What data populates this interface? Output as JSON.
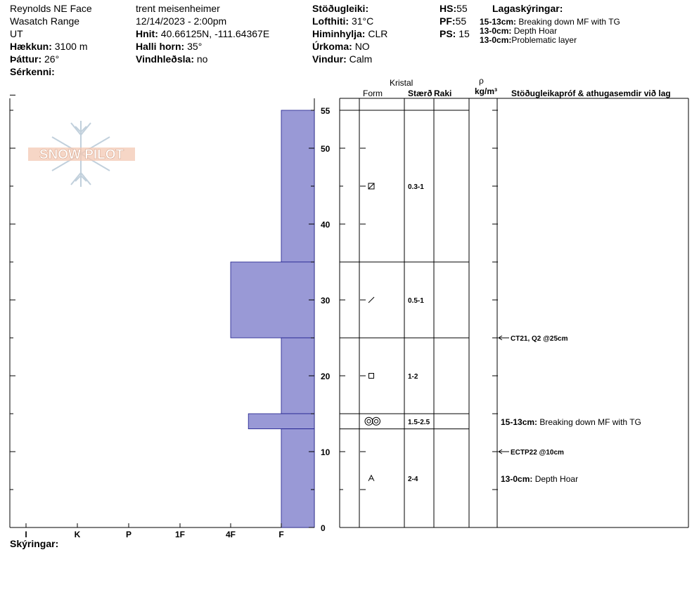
{
  "header": {
    "location": "Reynolds NE Face",
    "range": "Wasatch Range",
    "state": "UT",
    "elevation_label": "Hækkun:",
    "elevation": "3100 m",
    "aspect_label": "Þáttur:",
    "aspect": "26°",
    "features_label": "Sérkenni:",
    "features": "",
    "observer": "trent meisenheimer",
    "datetime": "12/14/2023 - 2:00pm",
    "coords_label": "Hnit:",
    "coords": "40.66125N, -111.64367E",
    "slope_label": "Halli horn:",
    "slope": "35°",
    "wind_loading_label": "Vindhleðsla:",
    "wind_loading": "no",
    "stability_label": "Stöðugleiki:",
    "stability": "",
    "air_temp_label": "Lofthiti:",
    "air_temp": "31°C",
    "sky_label": "Himinhylja:",
    "sky": "CLR",
    "precip_label": "Úrkoma:",
    "precip": "NO",
    "wind_label": "Vindur:",
    "wind": "Calm",
    "hs_label": "HS:",
    "hs": "55",
    "pf_label": "PF:",
    "pf": "55",
    "ps_label": "PS:",
    "ps": "15",
    "layer_notes_title": "Lagaskýringar:",
    "layer_notes": [
      {
        "range": "15-13cm:",
        "text": "Breaking down MF with TG"
      },
      {
        "range": "13-0cm:",
        "text": "Depth Hoar"
      },
      {
        "range": "13-0cm:",
        "text": "Problematic layer"
      }
    ]
  },
  "logo": {
    "text": "SNOW PILOT"
  },
  "columns": {
    "crystal": "Kristal",
    "form": "Form",
    "size": "Stærð",
    "moisture": "Raki",
    "density_symbol": "ρ",
    "density_unit": "kg/m³",
    "tests": "Stöðugleikapróf & athugasemdir við lag"
  },
  "footer": {
    "notes_label": "Skýringar:",
    "notes": ""
  },
  "chart_data": {
    "type": "bar",
    "subtype": "snow hardness profile (horizontal bars by depth)",
    "y_axis": {
      "range": [
        0,
        55
      ],
      "ticks": [
        0,
        10,
        20,
        30,
        40,
        50,
        55
      ]
    },
    "x_axis": {
      "hardness_ticks": [
        "I",
        "K",
        "P",
        "1F",
        "4F",
        "F"
      ]
    },
    "bar_color": "#9999d6",
    "layers": [
      {
        "from": 55,
        "to": 35,
        "hardness": "F",
        "form_icon": "faceted-rounded",
        "size": "0.3-1"
      },
      {
        "from": 35,
        "to": 25,
        "hardness": "4F",
        "form_icon": "precip-particle",
        "size": "0.5-1"
      },
      {
        "from": 25,
        "to": 15,
        "hardness": "F",
        "form_icon": "faceted",
        "size": "1-2"
      },
      {
        "from": 15,
        "to": 13,
        "hardness": "4F+",
        "hardness_level": 4.35,
        "form_icon": "melt-forms",
        "size": "1.5-2.5"
      },
      {
        "from": 13,
        "to": 0,
        "hardness": "F",
        "form_icon": "depth-hoar",
        "size": "2-4"
      }
    ],
    "tests": [
      {
        "depth": 25,
        "text": "CT21, Q2 @25cm"
      },
      {
        "depth": 10,
        "text": "ECTP22 @10cm"
      }
    ],
    "layer_comments": [
      {
        "depth": 14,
        "range": "15-13cm:",
        "text": "Breaking down MF with TG"
      },
      {
        "depth": 6.5,
        "range": "13-0cm:",
        "text": "Depth Hoar"
      }
    ]
  }
}
